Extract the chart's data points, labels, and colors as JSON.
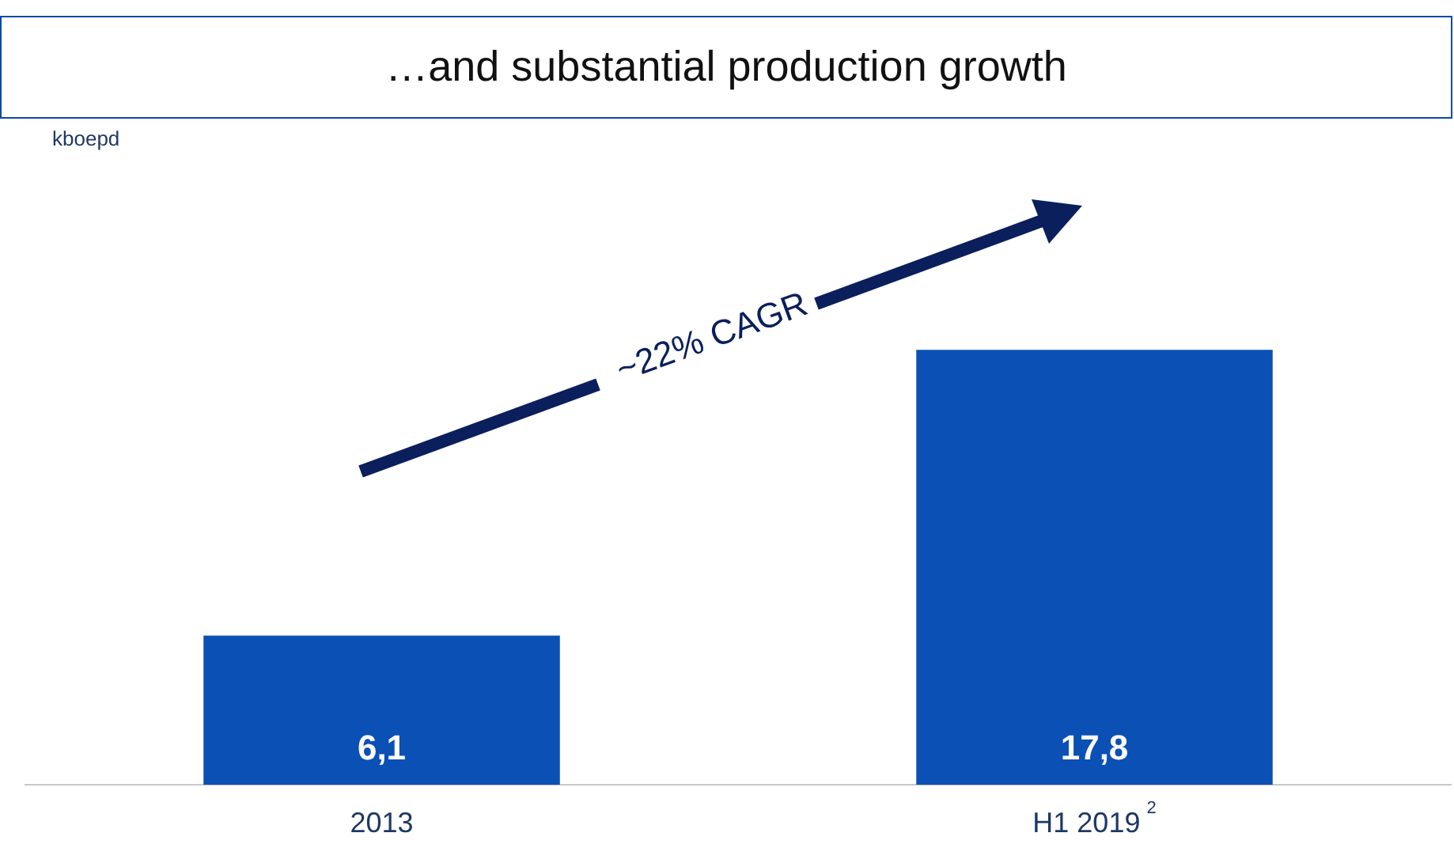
{
  "chart_data": {
    "type": "bar",
    "title": "…and substantial production growth",
    "categories": [
      "2013",
      "H1 2019$^{2}$"
    ],
    "values": [
      6.1,
      17.8
    ],
    "value_labels": [
      "6,1",
      "17,8"
    ],
    "color": "#0b50b4",
    "annotations": [
      "~22% CAGR",
      "kboepd"
    ],
    "grid": false,
    "legend": false
  }
}
